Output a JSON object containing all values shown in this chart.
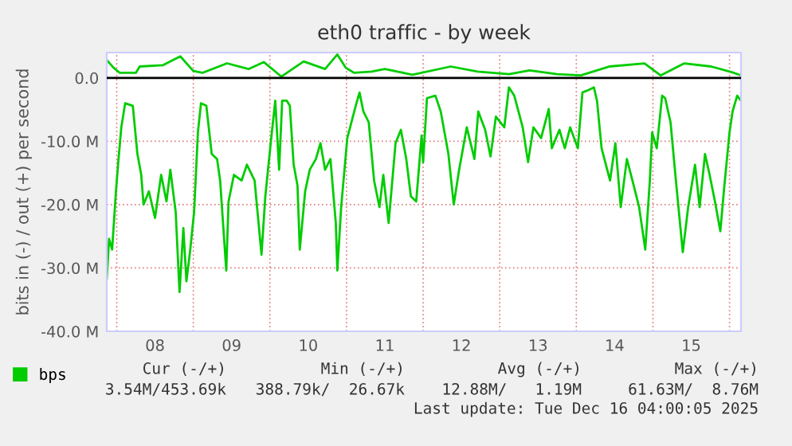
{
  "chart_data": {
    "type": "line",
    "title": "eth0 traffic - by week",
    "ylabel": "bits in (-) / out (+) per second",
    "xlim": [
      7.87,
      16.15
    ],
    "ylim": [
      -40,
      4
    ],
    "xticks": [
      {
        "value": 8,
        "label": null
      },
      {
        "value": 8.5,
        "label": "08"
      },
      {
        "value": 9,
        "label": null
      },
      {
        "value": 9.5,
        "label": "09"
      },
      {
        "value": 10,
        "label": null
      },
      {
        "value": 10.5,
        "label": "10"
      },
      {
        "value": 11,
        "label": null
      },
      {
        "value": 11.5,
        "label": "11"
      },
      {
        "value": 12,
        "label": null
      },
      {
        "value": 12.5,
        "label": "12"
      },
      {
        "value": 13,
        "label": null
      },
      {
        "value": 13.5,
        "label": "13"
      },
      {
        "value": 14,
        "label": null
      },
      {
        "value": 14.5,
        "label": "14"
      },
      {
        "value": 15,
        "label": null
      },
      {
        "value": 15.5,
        "label": "15"
      },
      {
        "value": 16,
        "label": null
      }
    ],
    "yticks": [
      {
        "value": -40,
        "label": "-40.0 M"
      },
      {
        "value": -30,
        "label": "-30.0 M"
      },
      {
        "value": -20,
        "label": "-20.0 M"
      },
      {
        "value": -10,
        "label": "-10.0 M"
      },
      {
        "value": 0,
        "label": "0.0"
      }
    ],
    "grid": true,
    "legend": "bottom left",
    "ref_lines": [
      {
        "axis": "y",
        "value": 0,
        "label": null,
        "color": "#000000"
      }
    ],
    "series": [
      {
        "name": "bps",
        "color": "#00cc00",
        "x": [
          7.87,
          7.9,
          7.94,
          7.99,
          8.02,
          8.06,
          8.11,
          8.21,
          8.27,
          8.32,
          8.35,
          8.42,
          8.5,
          8.58,
          8.65,
          8.7,
          8.77,
          8.82,
          8.87,
          8.91,
          8.96,
          9.01,
          9.06,
          9.1,
          9.17,
          9.24,
          9.31,
          9.35,
          9.43,
          9.46,
          9.53,
          9.63,
          9.7,
          9.8,
          9.89,
          9.94,
          10.01,
          10.07,
          10.12,
          10.16,
          10.22,
          10.26,
          10.31,
          10.36,
          10.39,
          10.46,
          10.52,
          10.6,
          10.66,
          10.72,
          10.79,
          10.86,
          10.88,
          10.93,
          11.01,
          11.12,
          11.17,
          11.22,
          11.29,
          11.36,
          11.43,
          11.48,
          11.55,
          11.64,
          11.71,
          11.78,
          11.84,
          11.91,
          11.98,
          12.0,
          12.05,
          12.16,
          12.23,
          12.33,
          12.4,
          12.47,
          12.57,
          12.67,
          12.72,
          12.81,
          12.88,
          12.95,
          13.06,
          13.12,
          13.19,
          13.3,
          13.37,
          13.44,
          13.54,
          13.64,
          13.68,
          13.78,
          13.85,
          13.92,
          14.02,
          14.08,
          14.16,
          14.23,
          14.27,
          14.33,
          14.44,
          14.51,
          14.58,
          14.66,
          14.75,
          14.82,
          14.9,
          14.96,
          14.99,
          15.05,
          15.12,
          15.16,
          15.23,
          15.3,
          15.39,
          15.46,
          15.55,
          15.61,
          15.68,
          15.74,
          15.81,
          15.88,
          15.93,
          16.0,
          16.04,
          16.1,
          16.15
        ],
        "values": [
          -31.7,
          -25.4,
          -27.1,
          -17.9,
          -13.3,
          -7.8,
          -4.0,
          -4.4,
          -12,
          -15.3,
          -20,
          -17.9,
          -22.1,
          -15.3,
          -19.5,
          -14.5,
          -21.2,
          -33.8,
          -23.7,
          -32.1,
          -27.1,
          -21.2,
          -8.6,
          -4.0,
          -4.4,
          -12,
          -12.8,
          -16.2,
          -30.4,
          -19.5,
          -15.3,
          -16.2,
          -13.7,
          -16.2,
          -27.9,
          -18.7,
          -10.3,
          -3.6,
          -14.5,
          -3.6,
          -3.6,
          -4.4,
          -13.7,
          -17,
          -27.1,
          -17.9,
          -14.5,
          -12.8,
          -10.3,
          -14.5,
          -12.8,
          -22.9,
          -30.4,
          -20.4,
          -9.5,
          -4.4,
          -2.3,
          -5.3,
          -7,
          -16.2,
          -20.4,
          -15.3,
          -22.9,
          -10.3,
          -8.2,
          -12.8,
          -18.7,
          -19.5,
          -9.1,
          -13.3,
          -3.2,
          -2.8,
          -5.3,
          -12,
          -20,
          -14.5,
          -7.8,
          -12.8,
          -5.3,
          -8.2,
          -12.4,
          -6.1,
          -7.8,
          -1.5,
          -2.8,
          -7.8,
          -13.3,
          -7.8,
          -9.5,
          -4.9,
          -11.1,
          -8.2,
          -11.1,
          -7.8,
          -11.1,
          -2.3,
          -1.9,
          -1.5,
          -3.6,
          -11.1,
          -16.2,
          -10.3,
          -20.4,
          -12.8,
          -17,
          -20.4,
          -27.1,
          -16.2,
          -8.6,
          -11.1,
          -2.8,
          -3.2,
          -7,
          -16.2,
          -27.5,
          -20.4,
          -13.7,
          -20.4,
          -12,
          -15.3,
          -19.5,
          -24.2,
          -17.4,
          -8.6,
          -5.3,
          -2.8,
          -3.6
        ]
      },
      {
        "color": "#00cc00",
        "x": [
          7.87,
          7.96,
          8.04,
          8.25,
          8.3,
          8.6,
          8.83,
          9.0,
          9.12,
          9.44,
          9.72,
          9.92,
          10.15,
          10.44,
          10.72,
          10.88,
          10.99,
          11.1,
          11.33,
          11.5,
          11.86,
          12.36,
          12.71,
          13.12,
          13.39,
          13.75,
          14.06,
          14.43,
          14.89,
          15.1,
          15.41,
          15.76,
          16.03,
          16.15
        ],
        "values": [
          2.8,
          1.6,
          0.8,
          0.8,
          1.8,
          2.0,
          3.4,
          1.1,
          0.8,
          2.3,
          1.4,
          2.5,
          0.2,
          2.6,
          1.4,
          3.7,
          1.6,
          0.8,
          1.0,
          1.4,
          0.5,
          1.8,
          1.0,
          0.6,
          1.2,
          0.6,
          0.4,
          1.8,
          2.3,
          0.4,
          2.3,
          1.8,
          0.9,
          0.4
        ]
      }
    ],
    "annotations": [
      "Cur (-/+)",
      "Min (-/+)",
      "Avg (-/+)",
      "Max (-/+)",
      "3.54M/453.69k",
      "388.79k/  26.67k",
      "12.88M/   1.19M",
      "61.63M/  8.76M",
      "Last update: Tue Dec 16 04:00:05 2025"
    ]
  }
}
